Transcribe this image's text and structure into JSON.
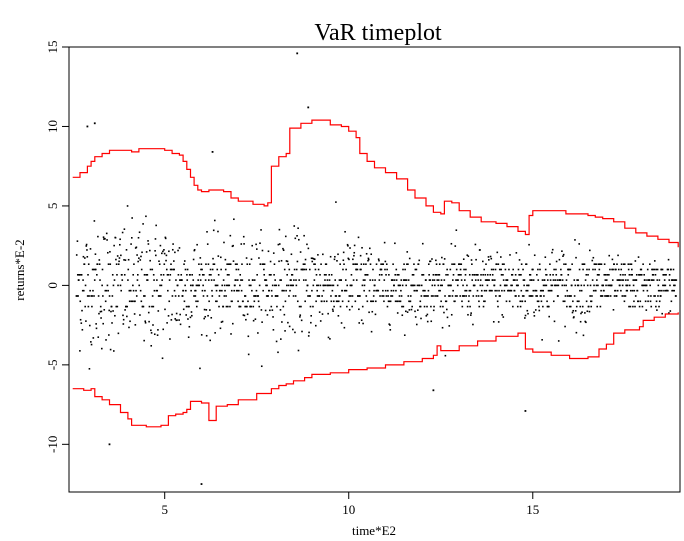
{
  "chart_data": {
    "type": "scatter",
    "title": "VaR timeplot",
    "xlabel": "time*E2",
    "ylabel": "returns*E-2",
    "xlim": [
      2.4,
      19.0
    ],
    "ylim": [
      -13.0,
      15.0
    ],
    "x_ticks": [
      5,
      10,
      15
    ],
    "y_ticks": [
      -10,
      -5,
      0,
      5,
      10,
      15
    ],
    "x_tick_labels": [
      "5",
      "10",
      "15"
    ],
    "y_tick_labels": [
      "-10",
      "-5",
      "0",
      "5",
      "10",
      "15"
    ],
    "grid": false,
    "legend": "none",
    "colors": {
      "returns": "#000000",
      "var_bands": "#ff0000"
    },
    "outlier_points": [
      {
        "x": 8.6,
        "y": 14.6
      },
      {
        "x": 2.9,
        "y": 10.0
      },
      {
        "x": 3.1,
        "y": 10.2
      },
      {
        "x": 8.9,
        "y": 11.2
      },
      {
        "x": 6.0,
        "y": -12.5
      },
      {
        "x": 3.5,
        "y": -10.0
      },
      {
        "x": 14.8,
        "y": -7.9
      },
      {
        "x": 12.3,
        "y": -6.6
      },
      {
        "x": 6.3,
        "y": 8.4
      }
    ],
    "series": [
      {
        "type": "line",
        "points": [
          [
            2.5,
            6.8
          ],
          [
            2.7,
            7.1
          ],
          [
            2.9,
            7.5
          ],
          [
            3.0,
            7.8
          ],
          [
            3.1,
            8.1
          ],
          [
            3.3,
            8.3
          ],
          [
            3.5,
            8.5
          ],
          [
            3.8,
            8.5
          ],
          [
            4.1,
            8.4
          ],
          [
            4.3,
            8.6
          ],
          [
            4.7,
            8.6
          ],
          [
            5.0,
            8.5
          ],
          [
            5.2,
            8.3
          ],
          [
            5.4,
            8.2
          ],
          [
            5.5,
            7.8
          ],
          [
            5.6,
            7.3
          ],
          [
            5.7,
            6.8
          ],
          [
            5.8,
            6.3
          ],
          [
            5.9,
            6.0
          ],
          [
            6.0,
            5.9
          ],
          [
            6.2,
            6.0
          ],
          [
            6.6,
            5.9
          ],
          [
            6.8,
            5.5
          ],
          [
            7.0,
            5.3
          ],
          [
            7.4,
            5.1
          ],
          [
            7.7,
            5.0
          ],
          [
            7.8,
            5.2
          ],
          [
            7.9,
            7.5
          ],
          [
            8.1,
            8.1
          ],
          [
            8.3,
            8.3
          ],
          [
            8.4,
            9.9
          ],
          [
            8.7,
            10.2
          ],
          [
            9.0,
            10.4
          ],
          [
            9.5,
            10.1
          ],
          [
            9.8,
            10.0
          ],
          [
            10.0,
            9.7
          ],
          [
            10.2,
            9.3
          ],
          [
            10.3,
            8.3
          ],
          [
            10.5,
            7.8
          ],
          [
            10.7,
            7.4
          ],
          [
            11.0,
            7.1
          ],
          [
            11.3,
            6.7
          ],
          [
            11.6,
            6.0
          ],
          [
            11.8,
            5.5
          ],
          [
            12.1,
            5.0
          ],
          [
            12.3,
            4.6
          ],
          [
            12.5,
            4.5
          ],
          [
            12.6,
            5.3
          ],
          [
            12.8,
            5.2
          ],
          [
            13.0,
            4.7
          ],
          [
            13.3,
            4.3
          ],
          [
            13.6,
            4.0
          ],
          [
            14.0,
            3.9
          ],
          [
            14.3,
            3.7
          ],
          [
            14.6,
            3.4
          ],
          [
            14.8,
            3.2
          ],
          [
            14.9,
            4.4
          ],
          [
            15.0,
            4.7
          ],
          [
            15.5,
            4.7
          ],
          [
            15.9,
            4.5
          ],
          [
            16.2,
            4.5
          ],
          [
            16.5,
            4.4
          ],
          [
            16.7,
            4.3
          ],
          [
            16.9,
            4.2
          ],
          [
            17.2,
            4.0
          ],
          [
            17.5,
            3.6
          ],
          [
            17.8,
            3.3
          ],
          [
            18.1,
            3.1
          ],
          [
            18.4,
            2.9
          ],
          [
            18.7,
            2.7
          ],
          [
            18.95,
            2.4
          ]
        ]
      },
      {
        "type": "line",
        "points": [
          [
            2.5,
            -6.5
          ],
          [
            2.8,
            -6.6
          ],
          [
            3.0,
            -6.5
          ],
          [
            3.1,
            -7.0
          ],
          [
            3.3,
            -7.2
          ],
          [
            3.5,
            -7.5
          ],
          [
            3.8,
            -8.0
          ],
          [
            4.0,
            -8.4
          ],
          [
            4.1,
            -8.8
          ],
          [
            4.5,
            -8.9
          ],
          [
            4.9,
            -8.8
          ],
          [
            5.1,
            -8.2
          ],
          [
            5.3,
            -8.1
          ],
          [
            5.5,
            -8.0
          ],
          [
            5.6,
            -7.8
          ],
          [
            5.7,
            -7.3
          ],
          [
            6.0,
            -7.4
          ],
          [
            6.2,
            -8.5
          ],
          [
            6.4,
            -7.6
          ],
          [
            6.7,
            -7.5
          ],
          [
            7.0,
            -7.2
          ],
          [
            7.5,
            -6.8
          ],
          [
            7.9,
            -6.5
          ],
          [
            8.1,
            -6.3
          ],
          [
            8.3,
            -6.2
          ],
          [
            8.5,
            -6.0
          ],
          [
            8.8,
            -5.8
          ],
          [
            9.0,
            -5.6
          ],
          [
            9.5,
            -5.5
          ],
          [
            10.0,
            -5.3
          ],
          [
            10.5,
            -5.2
          ],
          [
            11.0,
            -5.0
          ],
          [
            11.5,
            -4.8
          ],
          [
            12.0,
            -4.6
          ],
          [
            12.3,
            -4.4
          ],
          [
            12.4,
            -3.8
          ],
          [
            12.5,
            -4.1
          ],
          [
            13.0,
            -3.8
          ],
          [
            13.5,
            -3.5
          ],
          [
            14.0,
            -3.2
          ],
          [
            14.6,
            -3.0
          ],
          [
            14.8,
            -4.0
          ],
          [
            15.0,
            -4.2
          ],
          [
            15.5,
            -4.4
          ],
          [
            16.0,
            -4.6
          ],
          [
            16.5,
            -4.5
          ],
          [
            16.8,
            -4.0
          ],
          [
            17.0,
            -3.7
          ],
          [
            17.2,
            -3.0
          ],
          [
            17.5,
            -2.8
          ],
          [
            17.9,
            -2.6
          ],
          [
            18.0,
            -2.2
          ],
          [
            18.3,
            -2.0
          ],
          [
            18.6,
            -1.8
          ],
          [
            18.95,
            -1.7
          ]
        ]
      }
    ]
  }
}
